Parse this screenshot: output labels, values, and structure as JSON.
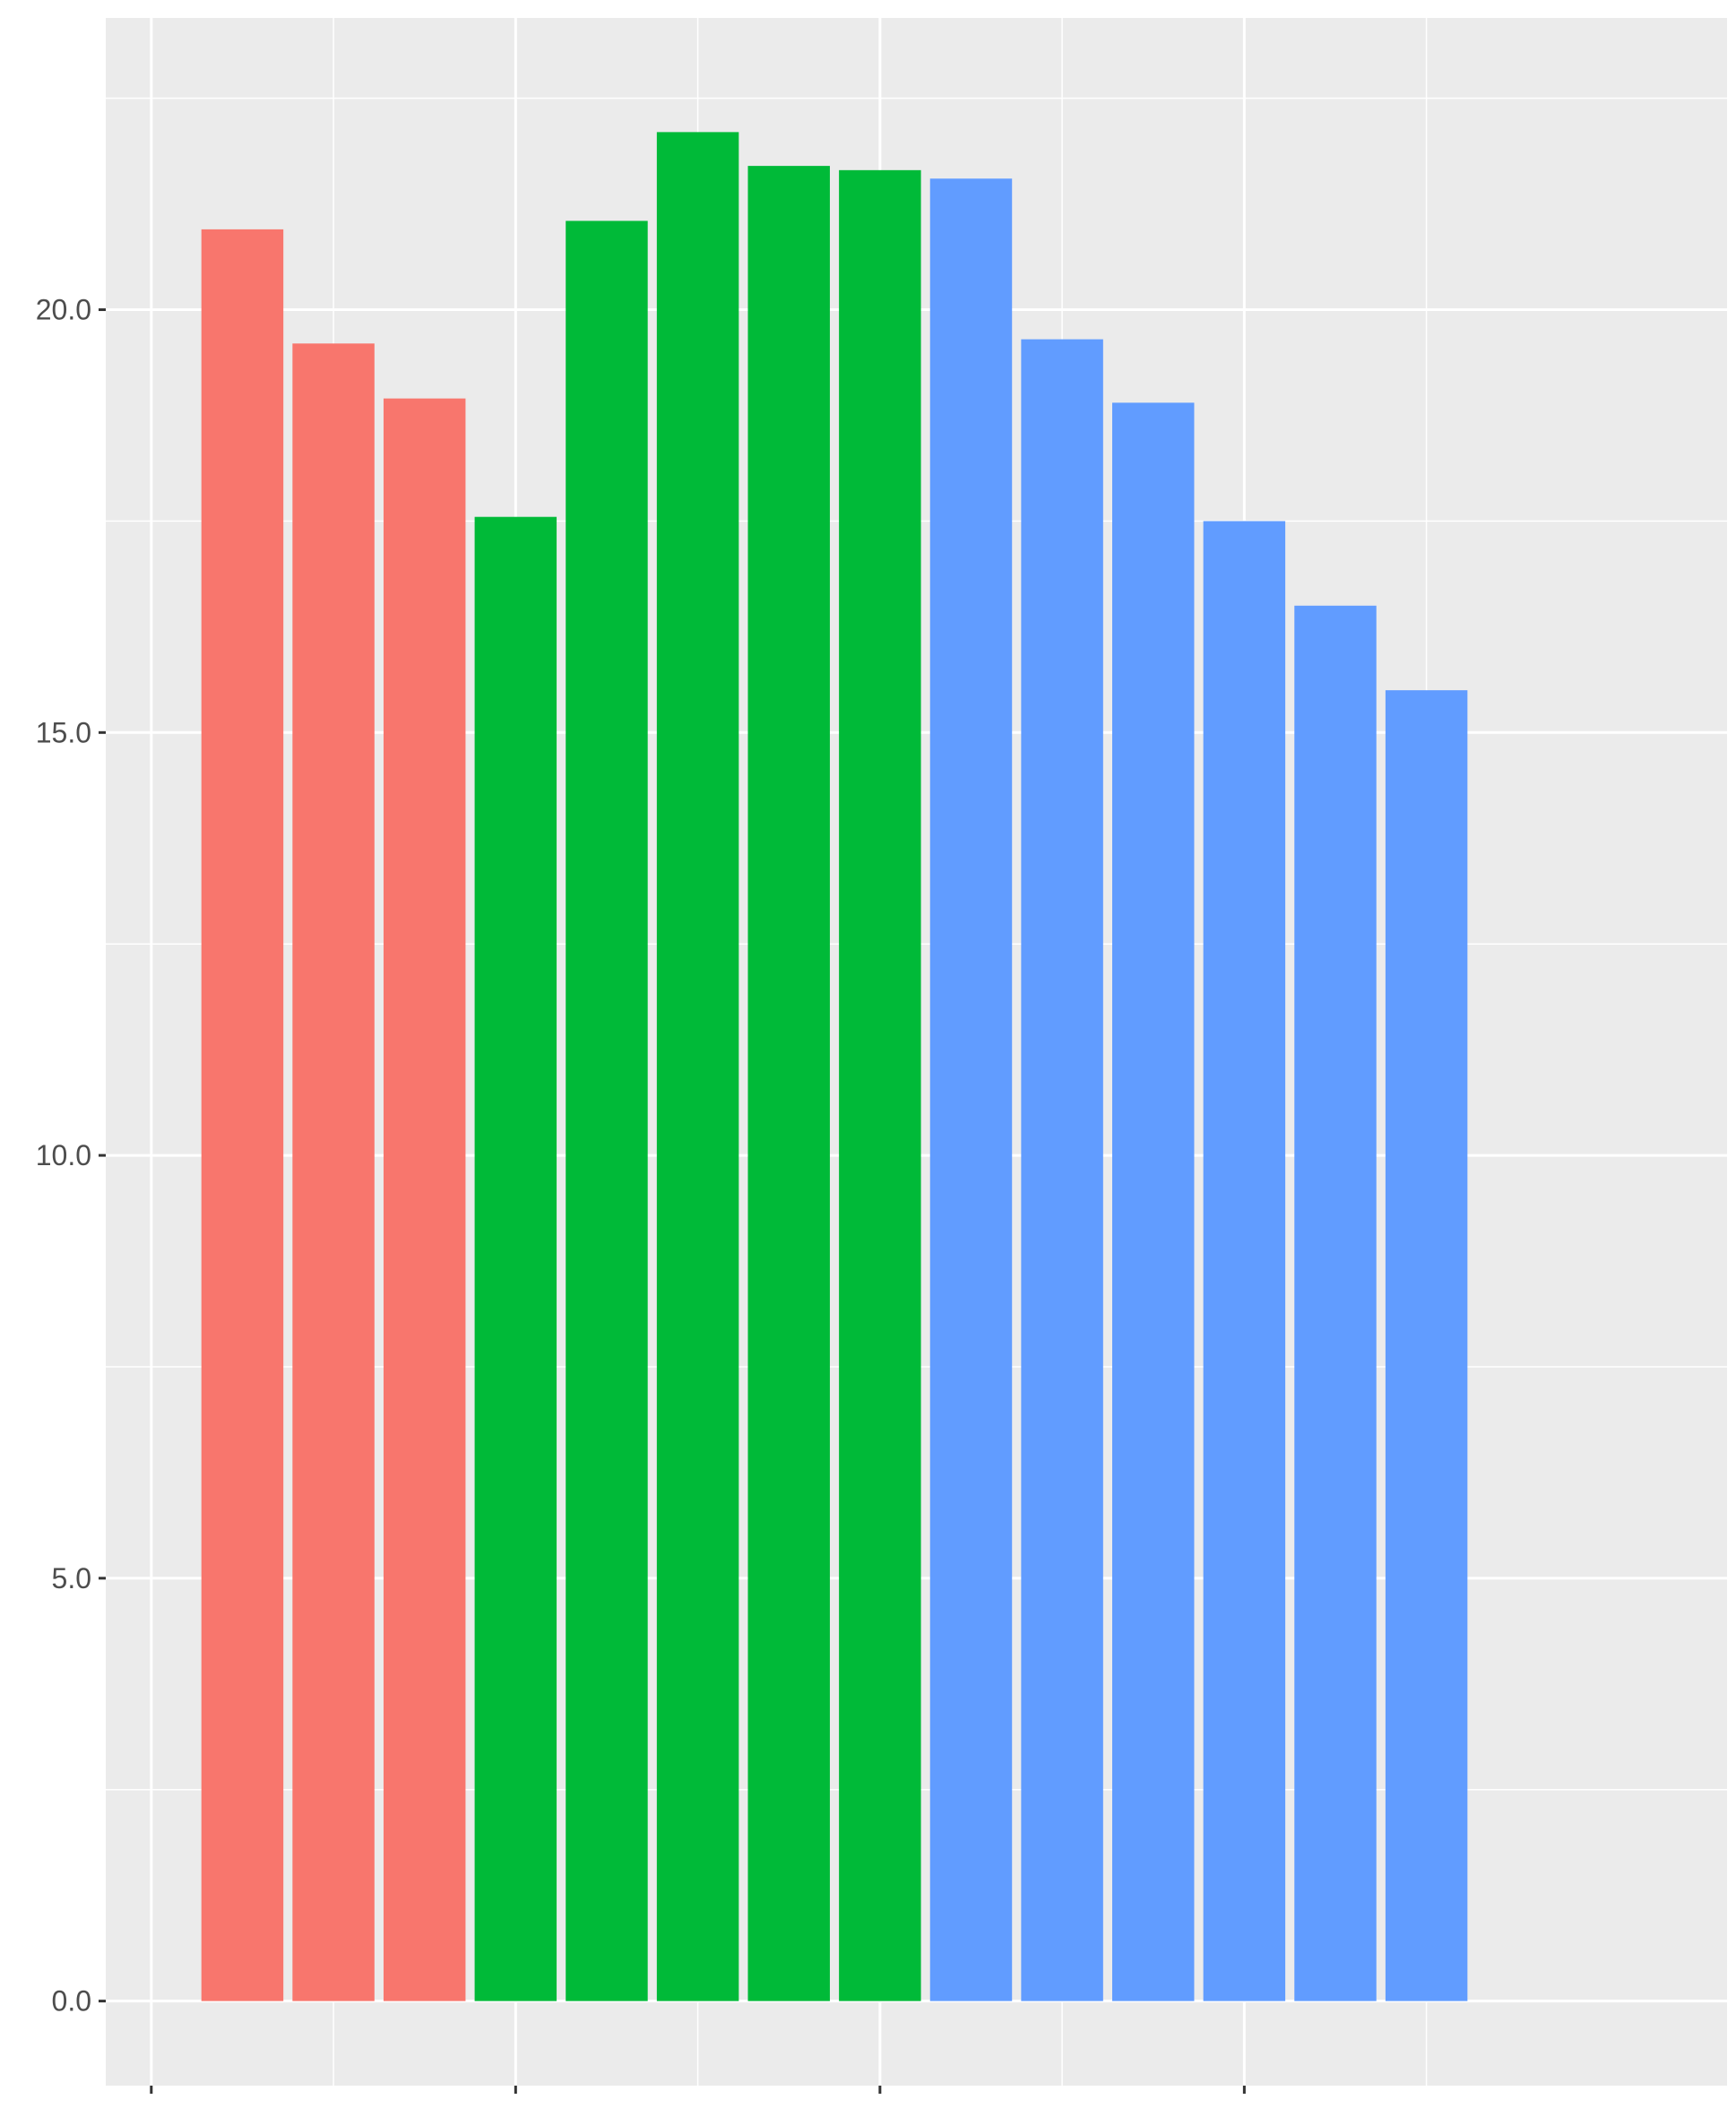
{
  "chart_data": {
    "type": "bar",
    "title": "",
    "xlabel": "",
    "ylabel": "",
    "ylim": [
      -1.0,
      23.45
    ],
    "xlim": [
      -0.5,
      17.3
    ],
    "y_ticks": [
      0,
      5,
      10,
      15,
      20
    ],
    "y_tick_labels": [
      "0.0",
      "5.0",
      "10.0",
      "15.0",
      "20.0"
    ],
    "y_minor_ticks": [
      2.5,
      7.5,
      12.5,
      17.5,
      22.5
    ],
    "x_ticks": [
      0,
      4,
      8,
      12
    ],
    "x_minor_ticks": [
      2,
      6,
      10,
      14
    ],
    "x_tick_labels": [],
    "grid": true,
    "legend": "none",
    "colors": {
      "panel_background": "#ebebeb",
      "grid": "#ffffff",
      "axis_text": "#4d4d4d",
      "tick_marks": "#333333"
    },
    "bars": [
      {
        "x": 1,
        "value": 20.95,
        "color": "#f8766d"
      },
      {
        "x": 2,
        "value": 19.6,
        "color": "#f8766d"
      },
      {
        "x": 3,
        "value": 18.95,
        "color": "#f8766d"
      },
      {
        "x": 4,
        "value": 17.55,
        "color": "#00ba38"
      },
      {
        "x": 5,
        "value": 21.05,
        "color": "#00ba38"
      },
      {
        "x": 6,
        "value": 22.1,
        "color": "#00ba38"
      },
      {
        "x": 7,
        "value": 21.7,
        "color": "#00ba38"
      },
      {
        "x": 8,
        "value": 21.65,
        "color": "#00ba38"
      },
      {
        "x": 9,
        "value": 21.55,
        "color": "#619cff"
      },
      {
        "x": 10,
        "value": 19.65,
        "color": "#619cff"
      },
      {
        "x": 11,
        "value": 18.9,
        "color": "#619cff"
      },
      {
        "x": 12,
        "value": 17.5,
        "color": "#619cff"
      },
      {
        "x": 13,
        "value": 16.5,
        "color": "#619cff"
      },
      {
        "x": 14,
        "value": 15.5,
        "color": "#619cff"
      }
    ],
    "bar_width": 0.9
  }
}
